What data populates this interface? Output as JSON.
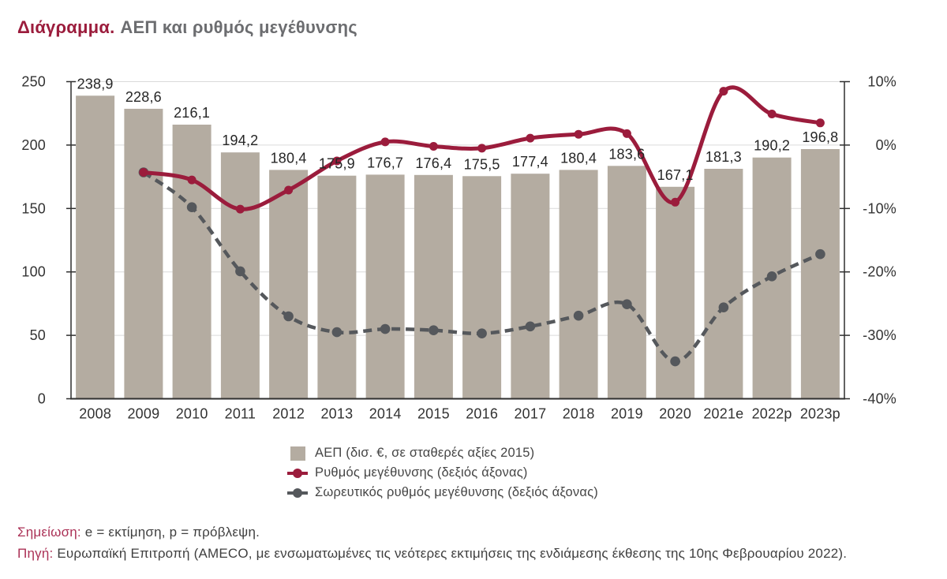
{
  "title": {
    "prefix": "Διάγραμμα.",
    "text": "ΑΕΠ και ρυθμός μεγέθυνσης"
  },
  "colors": {
    "bar": "#b4aca1",
    "growth_line": "#9b1c3c",
    "cumulative_line": "#55585c",
    "grid": "#dadada",
    "axis": "#2f2f2f",
    "label_text": "#262626",
    "tick_text": "#333333"
  },
  "chart_data": {
    "type": "bar+line combo, dual axis",
    "categories": [
      "2008",
      "2009",
      "2010",
      "2011",
      "2012",
      "2013",
      "2014",
      "2015",
      "2016",
      "2017",
      "2018",
      "2019",
      "2020",
      "2021e",
      "2022p",
      "2023p"
    ],
    "series": [
      {
        "name": "ΑΕΠ (δισ. €, σε σταθερές αξίες 2015)",
        "type": "bar",
        "axis": "left",
        "values": [
          238.9,
          228.6,
          216.1,
          194.2,
          180.4,
          175.9,
          176.7,
          176.4,
          175.5,
          177.4,
          180.4,
          183.6,
          167.1,
          181.3,
          190.2,
          196.8
        ],
        "labels": [
          "238,9",
          "228,6",
          "216,1",
          "194,2",
          "180,4",
          "175,9",
          "176,7",
          "176,4",
          "175,5",
          "177,4",
          "180,4",
          "183,6",
          "167,1",
          "181,3",
          "190,2",
          "196,8"
        ]
      },
      {
        "name": "Ρυθμός μεγέθυνσης (δεξιός άξονας)",
        "type": "line",
        "axis": "right",
        "values": [
          null,
          -4.3,
          -5.5,
          -10.1,
          -7.1,
          -2.5,
          0.5,
          -0.2,
          -0.5,
          1.1,
          1.7,
          1.8,
          -9.0,
          8.5,
          4.9,
          3.5
        ]
      },
      {
        "name": "Σωρευτικός ρυθμός μεγέθυνσης (δεξιός άξονας)",
        "type": "line-dashed",
        "axis": "right",
        "values": [
          null,
          -4.3,
          -9.8,
          -19.9,
          -27.0,
          -29.5,
          -29.0,
          -29.2,
          -29.7,
          -28.6,
          -26.9,
          -25.1,
          -34.1,
          -25.6,
          -20.7,
          -17.2
        ]
      }
    ],
    "left_axis": {
      "min": 0,
      "max": 250,
      "ticks": [
        {
          "label": "250",
          "value": 250
        },
        {
          "label": "200",
          "value": 200
        },
        {
          "label": "150",
          "value": 150
        },
        {
          "label": "100",
          "value": 100
        },
        {
          "label": "50",
          "value": 50
        },
        {
          "label": "0",
          "value": 0
        }
      ]
    },
    "right_axis": {
      "min": -40,
      "max": 10,
      "ticks": [
        {
          "label": "10%",
          "value": 10
        },
        {
          "label": "0%",
          "value": 0
        },
        {
          "label": "-10%",
          "value": -10
        },
        {
          "label": "-20%",
          "value": -20
        },
        {
          "label": "-30%",
          "value": -30
        },
        {
          "label": "-40%",
          "value": -40
        }
      ]
    },
    "gridline_values": [
      50,
      100,
      150,
      200,
      250
    ],
    "grid": "horizontal, light gray",
    "legend_position": "bottom-center"
  },
  "legend": {
    "items": [
      {
        "label": "ΑΕΠ (δισ. €, σε σταθερές αξίες 2015)"
      },
      {
        "label": "Ρυθμός μεγέθυνσης (δεξιός άξονας)"
      },
      {
        "label": "Σωρευτικός ρυθμός μεγέθυνσης (δεξιός άξονας)"
      }
    ]
  },
  "notes": [
    {
      "label": "Σημείωση:",
      "text": " e = εκτίμηση, p = πρόβλεψη."
    },
    {
      "label": "Πηγή:",
      "text": " Ευρωπαϊκή Επιτροπή (AMECO, με ενσωματωμένες τις νεότερες εκτιμήσεις της ενδιάμεσης έκθεσης της 10ης Φεβρουαρίου 2022)."
    }
  ]
}
